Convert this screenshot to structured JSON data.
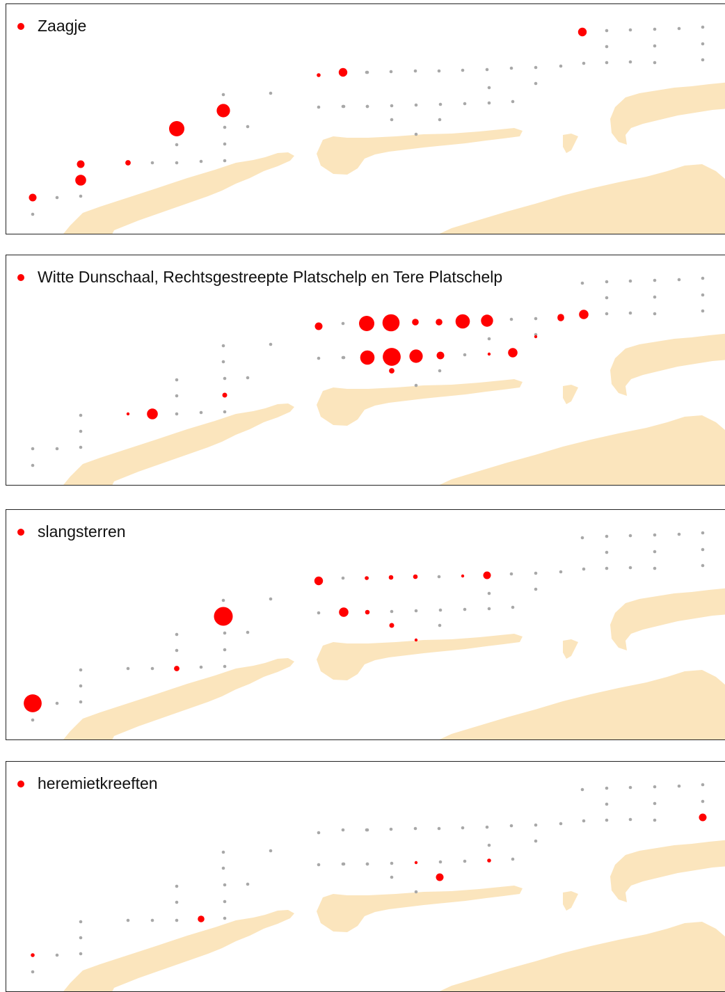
{
  "colors": {
    "land": "#fbe5bd",
    "presence": "#ff0000",
    "station": "#a8a8a8",
    "frame": "#222222"
  },
  "legend_icon": "filled-circle-icon",
  "panels": [
    {
      "id": "zaagje",
      "legend_label": "Zaagje",
      "sites": [
        {
          "s": "S01",
          "v": 2
        },
        {
          "s": "S02",
          "v": 0
        },
        {
          "s": "S03",
          "v": 0
        },
        {
          "s": "S04",
          "v": 0
        },
        {
          "s": "S05",
          "v": 4
        },
        {
          "s": "S06",
          "v": 2
        },
        {
          "s": "S07",
          "v": 1
        },
        {
          "s": "S08",
          "v": 0
        },
        {
          "s": "S09",
          "v": 0
        },
        {
          "s": "S10",
          "v": 0
        },
        {
          "s": "S11",
          "v": 8
        },
        {
          "s": "S12",
          "v": 0
        },
        {
          "s": "S13",
          "v": 0
        },
        {
          "s": "S14",
          "v": 0
        },
        {
          "s": "S15",
          "v": 0
        },
        {
          "s": "S16",
          "v": 6
        },
        {
          "s": "S17",
          "v": 0
        },
        {
          "s": "S18",
          "v": 0
        },
        {
          "s": "S19",
          "v": 0
        },
        {
          "s": "S20",
          "v": 0
        },
        {
          "s": "S21",
          "v": 0
        },
        {
          "s": "S22",
          "v": 0.5
        },
        {
          "s": "S23",
          "v": 2.5
        },
        {
          "s": "S24",
          "v": 0
        },
        {
          "s": "S25",
          "v": 0
        },
        {
          "s": "S26",
          "v": 0
        },
        {
          "s": "S27",
          "v": 0
        },
        {
          "s": "S28",
          "v": 0
        },
        {
          "s": "S29",
          "v": 0
        },
        {
          "s": "S30",
          "v": 0
        },
        {
          "s": "S31",
          "v": 0
        },
        {
          "s": "S32",
          "v": 0
        },
        {
          "s": "S33",
          "v": 0
        },
        {
          "s": "S34",
          "v": 0
        },
        {
          "s": "S35",
          "v": 0
        },
        {
          "s": "S36",
          "v": 0
        },
        {
          "s": "S37",
          "v": 0
        },
        {
          "s": "S38",
          "v": 0
        },
        {
          "s": "S39",
          "v": 0
        },
        {
          "s": "S40",
          "v": 0
        },
        {
          "s": "S41",
          "v": 0
        },
        {
          "s": "S42",
          "v": 0
        },
        {
          "s": "S43",
          "v": 0
        },
        {
          "s": "S44",
          "v": 0
        },
        {
          "s": "S45",
          "v": 0
        },
        {
          "s": "S46",
          "v": 0
        },
        {
          "s": "S47",
          "v": 2.5
        },
        {
          "s": "S48",
          "v": 0
        },
        {
          "s": "S49",
          "v": 0
        },
        {
          "s": "S50",
          "v": 0
        },
        {
          "s": "S51",
          "v": 0
        },
        {
          "s": "S52",
          "v": 0
        },
        {
          "s": "S53",
          "v": 0
        },
        {
          "s": "S54",
          "v": 0
        },
        {
          "s": "S55",
          "v": 0
        },
        {
          "s": "S56",
          "v": 0
        },
        {
          "s": "S57",
          "v": 0
        },
        {
          "s": "S58",
          "v": 0
        },
        {
          "s": "S59",
          "v": 0
        },
        {
          "s": "S60",
          "v": 0
        },
        {
          "s": "S61",
          "v": 0
        }
      ]
    },
    {
      "id": "witte-dunschaal",
      "legend_label": "Witte Dunschaal, Rechtsgestreepte Platschelp en Tere Platschelp",
      "sites": [
        {
          "s": "S01",
          "v": 0
        },
        {
          "s": "S02",
          "v": 0
        },
        {
          "s": "S03",
          "v": 0
        },
        {
          "s": "S04",
          "v": 0
        },
        {
          "s": "S05",
          "v": 0
        },
        {
          "s": "S06",
          "v": 0
        },
        {
          "s": "S07",
          "v": 0.3
        },
        {
          "s": "S08",
          "v": 4
        },
        {
          "s": "S09",
          "v": 0
        },
        {
          "s": "S10",
          "v": 0
        },
        {
          "s": "S11",
          "v": 0
        },
        {
          "s": "S12",
          "v": 0
        },
        {
          "s": "S13",
          "v": 0
        },
        {
          "s": "S14",
          "v": 0.8
        },
        {
          "s": "S15",
          "v": 0
        },
        {
          "s": "S16",
          "v": 0
        },
        {
          "s": "S17",
          "v": 0
        },
        {
          "s": "S18",
          "v": 0
        },
        {
          "s": "S19",
          "v": 0
        },
        {
          "s": "S20",
          "v": 0
        },
        {
          "s": "S21",
          "v": 0
        },
        {
          "s": "S22",
          "v": 2
        },
        {
          "s": "S23",
          "v": 0
        },
        {
          "s": "S24",
          "v": 0
        },
        {
          "s": "S25",
          "v": 8
        },
        {
          "s": "S26",
          "v": 10
        },
        {
          "s": "S27",
          "v": 1.5
        },
        {
          "s": "S28",
          "v": 1.5
        },
        {
          "s": "S29",
          "v": 7
        },
        {
          "s": "S30",
          "v": 5
        },
        {
          "s": "S31",
          "v": 0
        },
        {
          "s": "S32",
          "v": 0
        },
        {
          "s": "S33",
          "v": 0
        },
        {
          "s": "S34",
          "v": 0
        },
        {
          "s": "S35",
          "v": 7
        },
        {
          "s": "S36",
          "v": 11
        },
        {
          "s": "S37",
          "v": 6
        },
        {
          "s": "S38",
          "v": 2
        },
        {
          "s": "S39",
          "v": 0
        },
        {
          "s": "S40",
          "v": 0.2
        },
        {
          "s": "S41",
          "v": 3
        },
        {
          "s": "S42",
          "v": 1
        },
        {
          "s": "S43",
          "v": 0
        },
        {
          "s": "S44",
          "v": 0
        },
        {
          "s": "S45",
          "v": 0
        },
        {
          "s": "S46",
          "v": 0
        },
        {
          "s": "S47",
          "v": 0
        },
        {
          "s": "S48",
          "v": 0
        },
        {
          "s": "S49",
          "v": 0
        },
        {
          "s": "S50",
          "v": 0
        },
        {
          "s": "S51",
          "v": 0
        },
        {
          "s": "S52",
          "v": 0
        },
        {
          "s": "S53",
          "v": 0
        },
        {
          "s": "S54",
          "v": 0
        },
        {
          "s": "S55",
          "v": 0
        },
        {
          "s": "S56",
          "v": 0
        },
        {
          "s": "S57",
          "v": 0
        },
        {
          "s": "S58",
          "v": 1.5
        },
        {
          "s": "S59",
          "v": 3
        },
        {
          "s": "S60",
          "v": 0
        },
        {
          "s": "S61",
          "v": 0
        },
        {
          "s": "S62",
          "v": 0.2
        },
        {
          "s": "S63",
          "v": 1.5
        }
      ]
    },
    {
      "id": "slangsterren",
      "legend_label": "slangsterren",
      "sites": [
        {
          "s": "S01",
          "v": 11
        },
        {
          "s": "S02",
          "v": 0
        },
        {
          "s": "S03",
          "v": 0
        },
        {
          "s": "S04",
          "v": 0
        },
        {
          "s": "S05",
          "v": 0
        },
        {
          "s": "S06",
          "v": 0
        },
        {
          "s": "S07",
          "v": 0
        },
        {
          "s": "S08",
          "v": 0
        },
        {
          "s": "S09",
          "v": 1
        },
        {
          "s": "S10",
          "v": 0
        },
        {
          "s": "S11",
          "v": 0
        },
        {
          "s": "S12",
          "v": 0
        },
        {
          "s": "S13",
          "v": 0
        },
        {
          "s": "S14",
          "v": 0
        },
        {
          "s": "S15",
          "v": 0
        },
        {
          "s": "S16",
          "v": 12
        },
        {
          "s": "S17",
          "v": 0
        },
        {
          "s": "S18",
          "v": 0
        },
        {
          "s": "S19",
          "v": 0
        },
        {
          "s": "S20",
          "v": 0
        },
        {
          "s": "S21",
          "v": 0
        },
        {
          "s": "S22",
          "v": 2.5
        },
        {
          "s": "S23",
          "v": 0
        },
        {
          "s": "S24",
          "v": 0
        },
        {
          "s": "S25",
          "v": 0.5
        },
        {
          "s": "S26",
          "v": 0.7
        },
        {
          "s": "S27",
          "v": 0.7
        },
        {
          "s": "S28",
          "v": 0
        },
        {
          "s": "S29",
          "v": 0.3
        },
        {
          "s": "S30",
          "v": 2
        },
        {
          "s": "S31",
          "v": 0
        },
        {
          "s": "S32",
          "v": 0
        },
        {
          "s": "S33",
          "v": 0
        },
        {
          "s": "S34",
          "v": 3
        },
        {
          "s": "S35",
          "v": 0.7
        },
        {
          "s": "S36",
          "v": 0
        },
        {
          "s": "S37",
          "v": 0
        },
        {
          "s": "S38",
          "v": 0
        },
        {
          "s": "S39",
          "v": 0
        },
        {
          "s": "S40",
          "v": 0
        },
        {
          "s": "S41",
          "v": 0
        },
        {
          "s": "S42",
          "v": 0.8
        },
        {
          "s": "S43",
          "v": 0.3
        },
        {
          "s": "S44",
          "v": 0
        },
        {
          "s": "S45",
          "v": 0
        },
        {
          "s": "S46",
          "v": 0
        },
        {
          "s": "S47",
          "v": 0
        },
        {
          "s": "S48",
          "v": 0
        },
        {
          "s": "S49",
          "v": 0
        },
        {
          "s": "S50",
          "v": 0
        },
        {
          "s": "S51",
          "v": 0
        },
        {
          "s": "S52",
          "v": 0
        },
        {
          "s": "S53",
          "v": 0
        },
        {
          "s": "S54",
          "v": 0
        },
        {
          "s": "S55",
          "v": 0
        },
        {
          "s": "S56",
          "v": 0
        },
        {
          "s": "S57",
          "v": 0
        },
        {
          "s": "S58",
          "v": 0
        },
        {
          "s": "S59",
          "v": 0
        },
        {
          "s": "S60",
          "v": 0
        },
        {
          "s": "S61",
          "v": 0
        }
      ]
    },
    {
      "id": "heremietkreeften",
      "legend_label": "heremietkreeften",
      "sites": [
        {
          "s": "S01",
          "v": 0.5
        },
        {
          "s": "S02",
          "v": 0
        },
        {
          "s": "S03",
          "v": 0
        },
        {
          "s": "S04",
          "v": 0
        },
        {
          "s": "S05",
          "v": 0
        },
        {
          "s": "S06",
          "v": 0
        },
        {
          "s": "S07",
          "v": 0
        },
        {
          "s": "S08",
          "v": 0
        },
        {
          "s": "S09",
          "v": 0
        },
        {
          "s": "S10",
          "v": 1.5
        },
        {
          "s": "S11",
          "v": 0
        },
        {
          "s": "S12",
          "v": 0
        },
        {
          "s": "S13",
          "v": 0
        },
        {
          "s": "S14",
          "v": 0
        },
        {
          "s": "S15",
          "v": 0
        },
        {
          "s": "S16",
          "v": 0
        },
        {
          "s": "S17",
          "v": 0
        },
        {
          "s": "S18",
          "v": 0
        },
        {
          "s": "S19",
          "v": 0
        },
        {
          "s": "S20",
          "v": 0
        },
        {
          "s": "S21",
          "v": 0
        },
        {
          "s": "S22",
          "v": 0
        },
        {
          "s": "S23",
          "v": 0
        },
        {
          "s": "S24",
          "v": 0
        },
        {
          "s": "S25",
          "v": 0
        },
        {
          "s": "S26",
          "v": 0
        },
        {
          "s": "S27",
          "v": 0
        },
        {
          "s": "S28",
          "v": 0
        },
        {
          "s": "S29",
          "v": 0
        },
        {
          "s": "S30",
          "v": 0
        },
        {
          "s": "S31",
          "v": 0
        },
        {
          "s": "S32",
          "v": 0
        },
        {
          "s": "S33",
          "v": 0
        },
        {
          "s": "S34",
          "v": 0
        },
        {
          "s": "S35",
          "v": 0
        },
        {
          "s": "S36",
          "v": 0
        },
        {
          "s": "S37",
          "v": 0.3
        },
        {
          "s": "S38",
          "v": 0
        },
        {
          "s": "S39",
          "v": 0
        },
        {
          "s": "S40",
          "v": 0.5
        },
        {
          "s": "S41",
          "v": 0
        },
        {
          "s": "S42",
          "v": 0
        },
        {
          "s": "S43",
          "v": 0
        },
        {
          "s": "S44",
          "v": 2
        },
        {
          "s": "S45",
          "v": 0
        },
        {
          "s": "S46",
          "v": 0
        },
        {
          "s": "S47",
          "v": 0
        },
        {
          "s": "S48",
          "v": 0
        },
        {
          "s": "S49",
          "v": 0
        },
        {
          "s": "S50",
          "v": 0
        },
        {
          "s": "S51",
          "v": 0
        },
        {
          "s": "S52",
          "v": 0
        },
        {
          "s": "S53",
          "v": 0
        },
        {
          "s": "S54",
          "v": 0
        },
        {
          "s": "S55",
          "v": 0
        },
        {
          "s": "S56",
          "v": 0
        },
        {
          "s": "S57",
          "v": 2
        },
        {
          "s": "S58",
          "v": 0
        },
        {
          "s": "S59",
          "v": 0
        },
        {
          "s": "S60",
          "v": 0
        },
        {
          "s": "S61",
          "v": 0
        }
      ]
    }
  ]
}
